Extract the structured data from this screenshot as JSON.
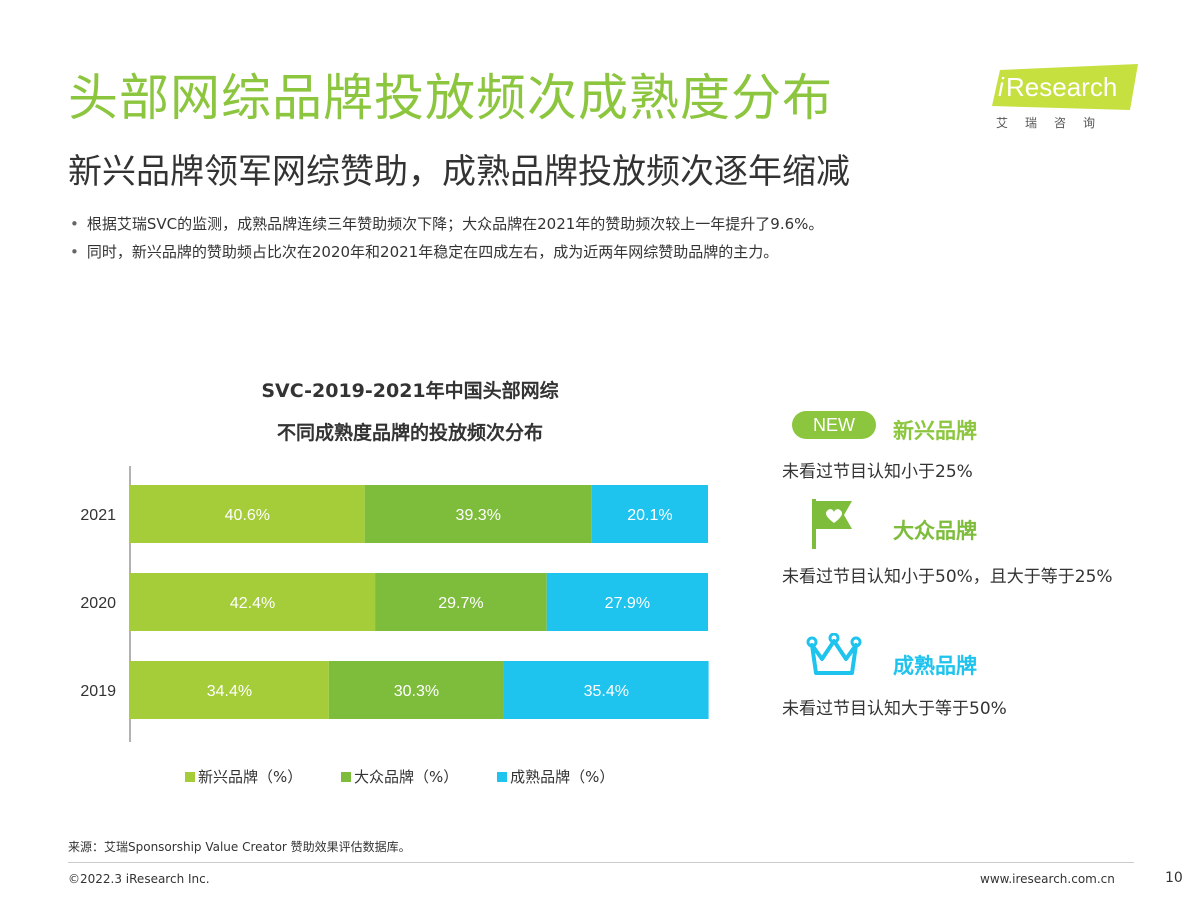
{
  "header": {
    "title": "头部网综品牌投放频次成熟度分布",
    "subtitle": "新兴品牌领军网综赞助，成熟品牌投放频次逐年缩减"
  },
  "bullets": [
    "根据艾瑞SVC的监测，成熟品牌连续三年赞助频次下降；大众品牌在2021年的赞助频次较上一年提升了9.6%。",
    "同时，新兴品牌的赞助频占比次在2020年和2021年稳定在四成左右，成为近两年网综赞助品牌的主力。"
  ],
  "logo": {
    "brand_i": "i",
    "brand_rest": "Research",
    "sub": "艾瑞咨询"
  },
  "chart_data": {
    "type": "bar",
    "orientation": "horizontal",
    "stacked": true,
    "title_line1": "SVC-2019-2021年中国头部网综",
    "title_line2": "不同成熟度品牌的投放频次分布",
    "categories": [
      "2021",
      "2020",
      "2019"
    ],
    "series": [
      {
        "name": "新兴品牌（%）",
        "color": "#a5cd39",
        "values": [
          40.6,
          42.4,
          34.4
        ],
        "labels": [
          "40.6%",
          "42.4%",
          "34.4%"
        ]
      },
      {
        "name": "大众品牌（%）",
        "color": "#7ebd3c",
        "values": [
          39.3,
          29.7,
          30.3
        ],
        "labels": [
          "39.3%",
          "29.7%",
          "30.3%"
        ]
      },
      {
        "name": "成熟品牌（%）",
        "color": "#1ec3ee",
        "values": [
          20.1,
          27.9,
          35.4
        ],
        "labels": [
          "20.1%",
          "27.9%",
          "35.4%"
        ]
      }
    ],
    "xlim": [
      0,
      100
    ],
    "legend_position": "bottom"
  },
  "categories_panel": {
    "new_badge": "NEW",
    "items": [
      {
        "title": "新兴品牌",
        "desc": "未看过节目认知小于25%",
        "icon": "new-badge-icon",
        "color": "#8cc63f"
      },
      {
        "title": "大众品牌",
        "desc": "未看过节目认知小于50%，且大于等于25%",
        "icon": "flag-heart-icon",
        "color": "#7ebd3c"
      },
      {
        "title": "成熟品牌",
        "desc": "未看过节目认知大于等于50%",
        "icon": "crown-icon",
        "color": "#1ec3ee"
      }
    ]
  },
  "footer": {
    "source": "来源：艾瑞Sponsorship Value Creator 赞助效果评估数据库。",
    "copyright": "©2022.3 iResearch Inc.",
    "website": "www.iresearch.com.cn",
    "page": "10"
  }
}
